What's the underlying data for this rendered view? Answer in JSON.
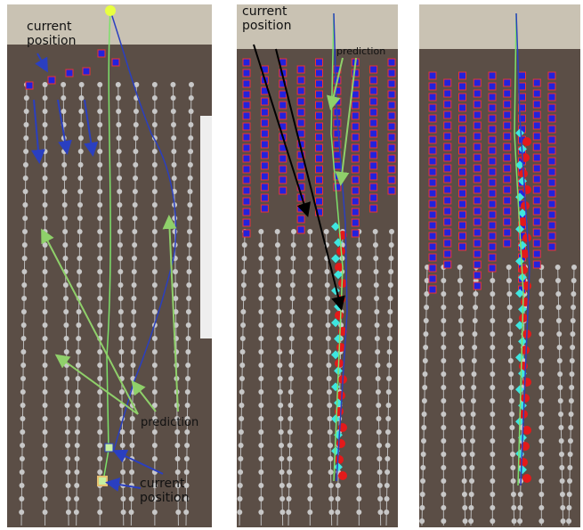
{
  "panels": [
    {
      "annotations": [
        "current position",
        "prediction",
        "current position"
      ]
    },
    {
      "annotations": [
        "current position",
        "prediction"
      ]
    }
  ]
}
